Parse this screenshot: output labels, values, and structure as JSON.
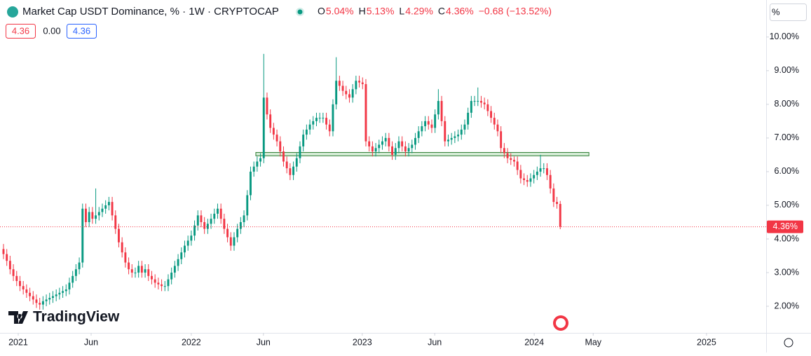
{
  "header": {
    "title": "Market Cap USDT Dominance, % · 1W · CRYPTOCAP",
    "ohlc": [
      {
        "key": "O",
        "text": "5.04%"
      },
      {
        "key": "H",
        "text": "5.13%"
      },
      {
        "key": "L",
        "text": "4.29%"
      },
      {
        "key": "C",
        "text": "4.36%"
      }
    ],
    "change": "−0.68 (−13.52%)",
    "boxes": [
      "4.36",
      "0.00",
      "4.36"
    ],
    "scale_button": "%",
    "brand": "TradingView"
  },
  "chart_data": {
    "type": "candlestick",
    "up_color": "#089981",
    "down_color": "#f23645",
    "grid": false,
    "open": [
      3.7,
      3.55,
      3.35,
      3.1,
      2.9,
      2.75,
      2.6,
      2.5,
      2.4,
      2.3,
      2.2,
      2.1,
      2.05,
      2.15,
      2.2,
      2.25,
      2.3,
      2.35,
      2.4,
      2.45,
      2.5,
      2.7,
      2.9,
      3.1,
      3.3,
      4.9,
      4.5,
      4.8,
      4.6,
      4.7,
      4.8,
      4.9,
      5.0,
      5.1,
      4.7,
      4.3,
      3.9,
      3.6,
      3.3,
      3.1,
      3.0,
      3.0,
      3.2,
      3.0,
      3.1,
      2.9,
      2.8,
      2.7,
      2.65,
      2.6,
      2.6,
      2.8,
      3.0,
      3.2,
      3.4,
      3.6,
      3.8,
      3.95,
      4.1,
      4.4,
      4.7,
      4.5,
      4.3,
      4.45,
      4.6,
      4.75,
      4.9,
      4.6,
      4.3,
      4.05,
      3.8,
      4.05,
      4.3,
      4.5,
      4.7,
      5.3,
      6.0,
      6.15,
      6.3,
      6.4,
      8.2,
      7.7,
      7.3,
      7.1,
      6.9,
      6.6,
      6.3,
      6.1,
      5.9,
      6.15,
      6.4,
      6.75,
      7.1,
      7.25,
      7.4,
      7.5,
      7.6,
      7.6,
      7.6,
      7.4,
      7.2,
      8.0,
      8.7,
      8.55,
      8.4,
      8.3,
      8.2,
      8.45,
      8.7,
      8.65,
      8.6,
      6.9,
      6.75,
      6.6,
      6.7,
      6.8,
      6.9,
      7.0,
      6.75,
      6.5,
      6.7,
      6.9,
      6.75,
      6.6,
      6.7,
      6.8,
      7.0,
      7.2,
      7.35,
      7.5,
      7.4,
      7.3,
      7.7,
      8.1,
      7.5,
      6.9,
      6.95,
      7.0,
      7.05,
      7.1,
      7.25,
      7.4,
      7.75,
      8.1,
      8.1,
      8.1,
      8.05,
      8.0,
      7.8,
      7.6,
      7.4,
      7.2,
      6.7,
      6.55,
      6.4,
      6.35,
      6.3,
      6.05,
      5.8,
      5.75,
      5.7,
      5.8,
      5.9,
      6.0,
      6.1,
      6.1,
      5.9,
      5.5,
      5.1,
      5.04
    ],
    "high": [
      3.85,
      3.7,
      3.5,
      3.25,
      3.05,
      2.9,
      2.75,
      2.65,
      2.55,
      2.45,
      2.35,
      2.25,
      2.3,
      2.35,
      2.4,
      2.45,
      2.5,
      2.55,
      2.6,
      2.65,
      2.85,
      3.05,
      3.25,
      3.45,
      5.05,
      5.05,
      4.95,
      4.95,
      5.5,
      4.95,
      5.05,
      5.15,
      5.25,
      5.25,
      4.85,
      4.45,
      4.05,
      3.75,
      3.45,
      3.25,
      3.15,
      3.35,
      3.35,
      3.25,
      3.25,
      3.05,
      2.95,
      2.85,
      2.8,
      2.75,
      2.95,
      3.15,
      3.35,
      3.55,
      3.75,
      3.95,
      4.1,
      4.25,
      4.55,
      4.85,
      4.85,
      4.65,
      4.6,
      4.75,
      4.9,
      5.05,
      5.05,
      4.75,
      4.45,
      4.2,
      4.2,
      4.45,
      4.65,
      4.85,
      5.45,
      6.15,
      6.3,
      6.45,
      6.55,
      9.5,
      8.35,
      7.85,
      7.45,
      7.25,
      7.05,
      6.75,
      6.45,
      6.25,
      6.3,
      6.55,
      6.9,
      7.25,
      7.4,
      7.55,
      7.65,
      7.75,
      7.75,
      7.75,
      7.75,
      7.55,
      8.15,
      9.4,
      8.85,
      8.7,
      8.55,
      8.45,
      8.6,
      8.85,
      8.85,
      8.8,
      8.75,
      7.05,
      6.9,
      6.85,
      6.95,
      7.05,
      7.15,
      7.15,
      6.9,
      6.85,
      7.05,
      7.05,
      6.9,
      6.85,
      6.95,
      7.15,
      7.35,
      7.5,
      7.65,
      7.65,
      7.55,
      7.85,
      8.45,
      8.25,
      7.65,
      7.1,
      7.15,
      7.2,
      7.25,
      7.4,
      7.55,
      7.9,
      8.25,
      8.25,
      8.5,
      8.25,
      8.2,
      8.15,
      7.95,
      7.75,
      7.55,
      7.35,
      6.85,
      6.7,
      6.55,
      6.45,
      6.45,
      6.2,
      5.95,
      5.9,
      5.95,
      6.05,
      6.15,
      6.5,
      6.25,
      6.25,
      6.05,
      5.65,
      5.25,
      5.13
    ],
    "low": [
      3.4,
      3.2,
      2.95,
      2.75,
      2.6,
      2.45,
      2.35,
      2.25,
      2.15,
      2.05,
      1.95,
      1.9,
      1.9,
      2.0,
      2.05,
      2.1,
      2.15,
      2.2,
      2.25,
      2.3,
      2.35,
      2.55,
      2.75,
      2.95,
      3.15,
      4.35,
      4.35,
      4.45,
      4.45,
      4.55,
      4.65,
      4.75,
      4.85,
      4.55,
      4.15,
      3.75,
      3.45,
      3.15,
      2.95,
      2.85,
      2.85,
      2.85,
      2.85,
      2.85,
      2.75,
      2.65,
      2.55,
      2.5,
      2.45,
      2.45,
      2.45,
      2.65,
      2.85,
      3.05,
      3.25,
      3.45,
      3.65,
      3.8,
      3.95,
      4.25,
      4.35,
      4.15,
      4.15,
      4.3,
      4.45,
      4.6,
      4.45,
      4.15,
      3.9,
      3.65,
      3.65,
      3.9,
      4.15,
      4.35,
      4.55,
      5.15,
      5.85,
      6.0,
      6.15,
      6.25,
      7.55,
      7.15,
      6.95,
      6.75,
      6.45,
      6.15,
      5.95,
      5.75,
      5.75,
      6.0,
      6.25,
      6.6,
      6.95,
      7.1,
      7.25,
      7.35,
      7.45,
      7.45,
      7.25,
      7.05,
      7.05,
      7.85,
      8.4,
      8.25,
      8.15,
      8.05,
      8.05,
      8.3,
      8.5,
      8.45,
      6.75,
      6.6,
      6.45,
      6.45,
      6.55,
      6.65,
      6.75,
      6.6,
      6.35,
      6.35,
      6.55,
      6.6,
      6.45,
      6.45,
      6.55,
      6.65,
      6.85,
      7.05,
      7.2,
      7.25,
      7.15,
      7.15,
      7.55,
      7.35,
      6.75,
      6.75,
      6.8,
      6.85,
      6.9,
      6.95,
      7.1,
      7.25,
      7.6,
      7.95,
      7.95,
      7.9,
      7.85,
      7.65,
      7.45,
      7.25,
      7.05,
      6.55,
      6.4,
      6.25,
      6.2,
      6.15,
      5.9,
      5.65,
      5.6,
      5.55,
      5.55,
      5.65,
      5.75,
      5.85,
      5.95,
      5.75,
      5.35,
      4.95,
      4.9,
      4.29
    ],
    "close": [
      3.55,
      3.35,
      3.1,
      2.9,
      2.75,
      2.6,
      2.5,
      2.4,
      2.3,
      2.2,
      2.1,
      2.05,
      2.15,
      2.2,
      2.25,
      2.3,
      2.35,
      2.4,
      2.45,
      2.5,
      2.7,
      2.9,
      3.1,
      3.3,
      4.9,
      4.5,
      4.8,
      4.6,
      4.7,
      4.8,
      4.9,
      5.0,
      5.1,
      4.7,
      4.3,
      3.9,
      3.6,
      3.3,
      3.1,
      3.0,
      3.0,
      3.2,
      3.0,
      3.1,
      2.9,
      2.8,
      2.7,
      2.65,
      2.6,
      2.6,
      2.8,
      3.0,
      3.2,
      3.4,
      3.6,
      3.8,
      3.95,
      4.1,
      4.4,
      4.7,
      4.5,
      4.3,
      4.45,
      4.6,
      4.75,
      4.9,
      4.6,
      4.3,
      4.05,
      3.8,
      4.05,
      4.3,
      4.5,
      4.7,
      5.3,
      6.0,
      6.15,
      6.3,
      6.4,
      8.2,
      7.7,
      7.3,
      7.1,
      6.9,
      6.6,
      6.3,
      6.1,
      5.9,
      6.15,
      6.4,
      6.75,
      7.1,
      7.25,
      7.4,
      7.5,
      7.6,
      7.6,
      7.6,
      7.4,
      7.2,
      8.0,
      8.7,
      8.55,
      8.4,
      8.3,
      8.2,
      8.45,
      8.7,
      8.65,
      8.6,
      6.9,
      6.75,
      6.6,
      6.7,
      6.8,
      6.9,
      7.0,
      6.75,
      6.5,
      6.7,
      6.9,
      6.75,
      6.6,
      6.7,
      6.8,
      7.0,
      7.2,
      7.35,
      7.5,
      7.4,
      7.3,
      7.7,
      8.1,
      7.5,
      6.9,
      6.95,
      7.0,
      7.05,
      7.1,
      7.25,
      7.4,
      7.75,
      8.1,
      8.1,
      8.1,
      8.05,
      8.0,
      7.8,
      7.6,
      7.4,
      7.2,
      6.7,
      6.55,
      6.4,
      6.35,
      6.3,
      6.05,
      5.8,
      5.75,
      5.7,
      5.8,
      5.9,
      6.0,
      6.1,
      6.1,
      5.9,
      5.5,
      5.1,
      5.04,
      4.36
    ],
    "xlim": [
      -1.06,
      231.5
    ],
    "xticks": [
      {
        "value": 4.47,
        "label": "2021"
      },
      {
        "value": 26.6,
        "label": "Jun"
      },
      {
        "value": 57,
        "label": "2022"
      },
      {
        "value": 78.9,
        "label": "Jun"
      },
      {
        "value": 108.9,
        "label": "2023"
      },
      {
        "value": 130.9,
        "label": "Jun"
      },
      {
        "value": 161.1,
        "label": "2024"
      },
      {
        "value": 179,
        "label": "May"
      },
      {
        "value": 213.4,
        "label": "2025"
      }
    ],
    "ylim": [
      1.23,
      11.1
    ],
    "yticks": [
      {
        "value": 2,
        "label": "2.00%"
      },
      {
        "value": 3,
        "label": "3.00%"
      },
      {
        "value": 4,
        "label": "4.00%"
      },
      {
        "value": 5,
        "label": "5.00%"
      },
      {
        "value": 6,
        "label": "6.00%"
      },
      {
        "value": 7,
        "label": "7.00%"
      },
      {
        "value": 8,
        "label": "8.00%"
      },
      {
        "value": 9,
        "label": "9.00%"
      },
      {
        "value": 10,
        "label": "10.00%"
      }
    ],
    "last_price": {
      "value": 4.36,
      "label": "4.36%"
    },
    "zone": {
      "x": [
        76.6,
        177.7
      ],
      "y": [
        6.47,
        6.57
      ],
      "color": "#a5d6a7"
    }
  }
}
